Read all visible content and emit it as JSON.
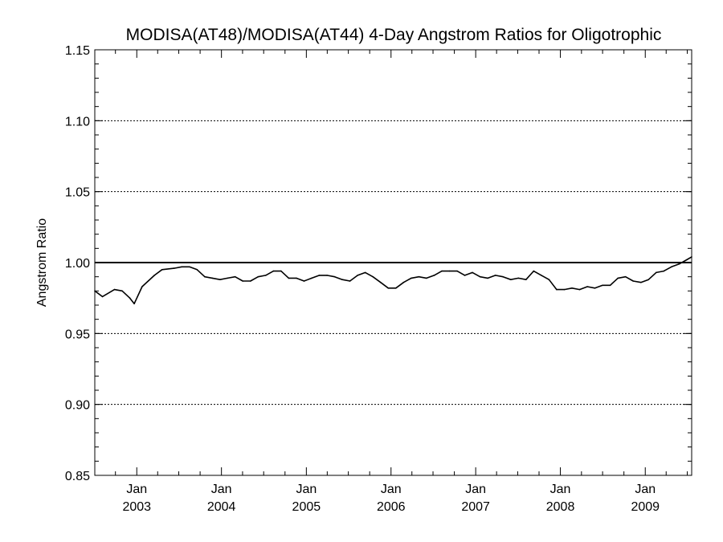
{
  "chart_data": {
    "type": "line",
    "title": "MODISA(AT48)/MODISA(AT44) 4-Day Angstrom Ratios for Oligotrophic",
    "xlabel": "",
    "ylabel": "Angstrom Ratio",
    "ylim": [
      0.85,
      1.15
    ],
    "yticks": [
      "0.85",
      "0.90",
      "0.95",
      "1.00",
      "1.05",
      "1.10",
      "1.15"
    ],
    "xlim": [
      "2002-07-04",
      "2009-07-20"
    ],
    "xticks": [
      {
        "date": "2003-01-01",
        "month": "Jan",
        "year": "2003"
      },
      {
        "date": "2004-01-01",
        "month": "Jan",
        "year": "2004"
      },
      {
        "date": "2005-01-01",
        "month": "Jan",
        "year": "2005"
      },
      {
        "date": "2006-01-01",
        "month": "Jan",
        "year": "2006"
      },
      {
        "date": "2007-01-01",
        "month": "Jan",
        "year": "2007"
      },
      {
        "date": "2008-01-01",
        "month": "Jan",
        "year": "2008"
      },
      {
        "date": "2009-01-01",
        "month": "Jan",
        "year": "2009"
      }
    ],
    "grid": "dotted horizontal lines at major y ticks",
    "reference_line": 1.0,
    "series": [
      {
        "x": [
          "2002-07-04",
          "2002-08-06",
          "2002-09-27",
          "2002-10-30",
          "2002-12-02",
          "2002-12-21",
          "2003-01-24",
          "2003-03-18",
          "2003-04-20",
          "2003-06-11",
          "2003-07-14",
          "2003-08-16",
          "2003-09-18",
          "2003-10-21",
          "2003-11-23",
          "2003-12-26",
          "2004-01-27",
          "2004-02-29",
          "2004-04-02",
          "2004-05-05",
          "2004-06-07",
          "2004-07-10",
          "2004-08-12",
          "2004-09-14",
          "2004-10-17",
          "2004-11-19",
          "2004-12-22",
          "2005-01-24",
          "2005-02-26",
          "2005-03-31",
          "2005-05-03",
          "2005-06-05",
          "2005-07-08",
          "2005-08-10",
          "2005-09-12",
          "2005-10-15",
          "2005-11-17",
          "2005-12-20",
          "2006-01-22",
          "2006-02-24",
          "2006-03-29",
          "2006-05-01",
          "2006-06-03",
          "2006-07-06",
          "2006-08-08",
          "2006-09-10",
          "2006-10-13",
          "2006-11-15",
          "2006-12-18",
          "2007-01-20",
          "2007-02-22",
          "2007-03-27",
          "2007-04-29",
          "2007-06-01",
          "2007-07-04",
          "2007-08-06",
          "2007-09-08",
          "2007-10-11",
          "2007-11-13",
          "2007-12-16",
          "2008-01-18",
          "2008-02-20",
          "2008-03-24",
          "2008-04-26",
          "2008-05-29",
          "2008-07-01",
          "2008-08-03",
          "2008-09-05",
          "2008-10-08",
          "2008-11-10",
          "2008-12-13",
          "2009-01-15",
          "2009-02-17",
          "2009-03-22",
          "2009-04-24",
          "2009-05-27",
          "2009-06-29",
          "2009-07-20"
        ],
        "values": [
          0.98,
          0.976,
          0.981,
          0.98,
          0.975,
          0.971,
          0.983,
          0.991,
          0.995,
          0.996,
          0.997,
          0.997,
          0.995,
          0.99,
          0.989,
          0.988,
          0.989,
          0.99,
          0.987,
          0.987,
          0.99,
          0.991,
          0.994,
          0.994,
          0.989,
          0.989,
          0.987,
          0.989,
          0.991,
          0.991,
          0.99,
          0.988,
          0.987,
          0.991,
          0.993,
          0.99,
          0.986,
          0.982,
          0.982,
          0.986,
          0.989,
          0.99,
          0.989,
          0.991,
          0.994,
          0.994,
          0.994,
          0.991,
          0.993,
          0.99,
          0.989,
          0.991,
          0.99,
          0.988,
          0.989,
          0.988,
          0.994,
          0.991,
          0.988,
          0.981,
          0.981,
          0.982,
          0.981,
          0.983,
          0.982,
          0.984,
          0.984,
          0.989,
          0.99,
          0.987,
          0.986,
          0.988,
          0.993,
          0.994,
          0.997,
          0.999,
          1.002,
          1.004
        ]
      }
    ]
  }
}
